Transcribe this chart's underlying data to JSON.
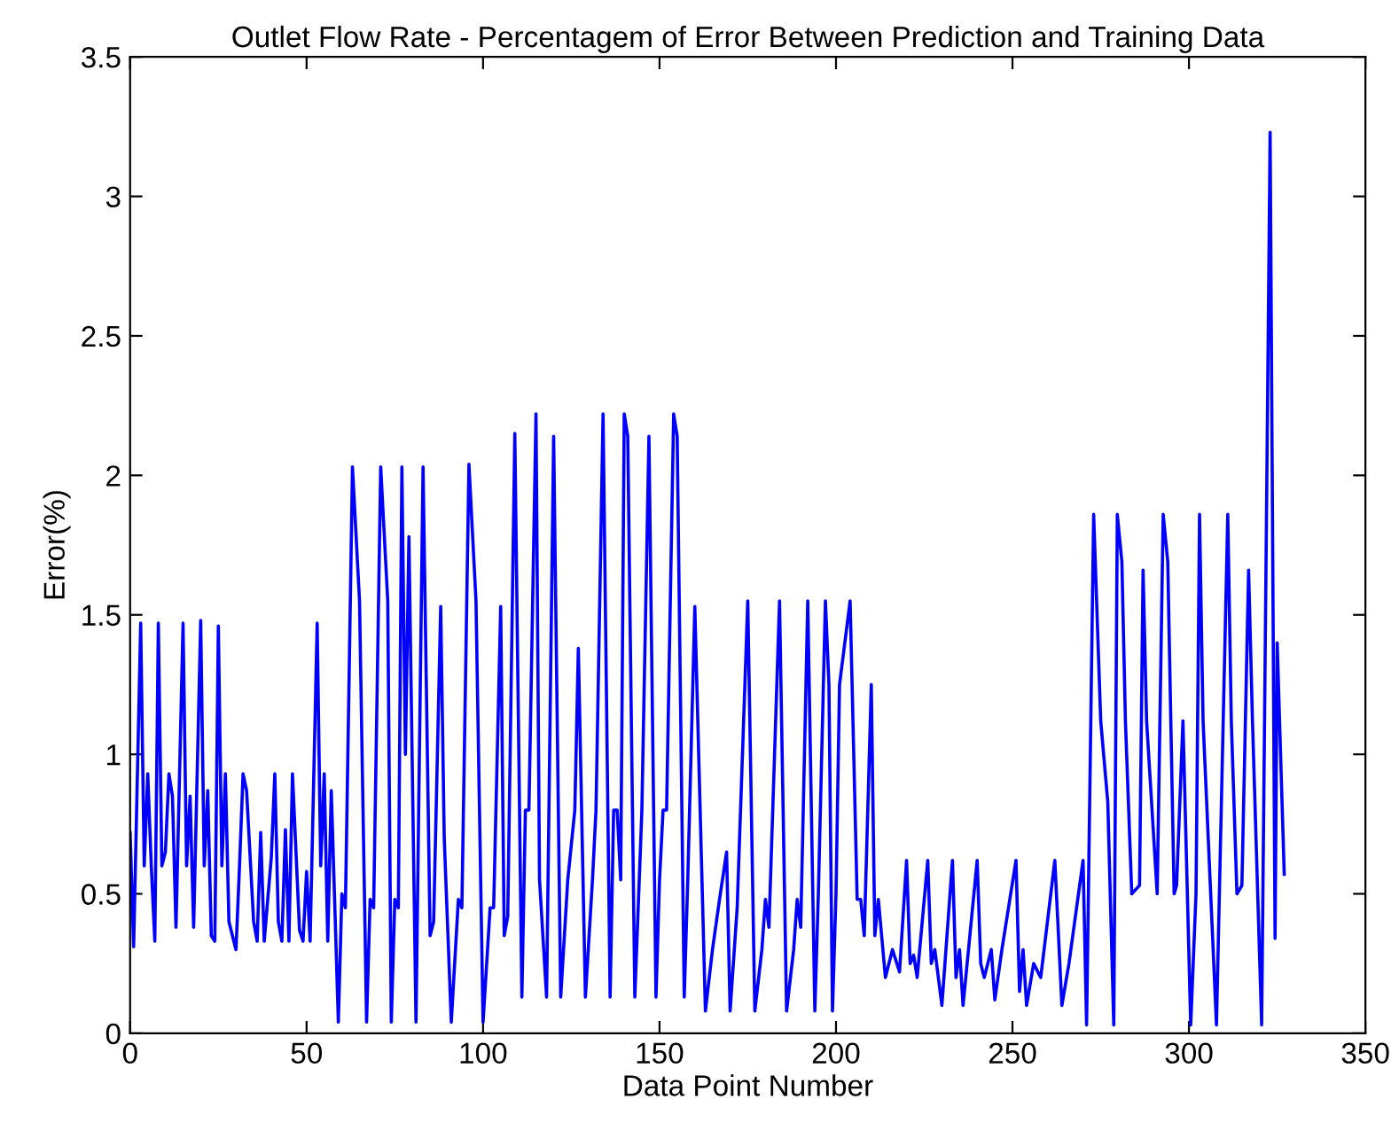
{
  "chart_data": {
    "type": "line",
    "title": "Outlet Flow Rate - Percentagem of Error Between Prediction and Training Data",
    "xlabel": "Data Point Number",
    "ylabel": "Error(%)",
    "series": [
      {
        "color": "#0000ff",
        "x": [
          0,
          1,
          3,
          4,
          5,
          6,
          7,
          8,
          9,
          10,
          11,
          12,
          13,
          15,
          16,
          17,
          18,
          20,
          21,
          22,
          23,
          24,
          25,
          26,
          27,
          28,
          30,
          31,
          32,
          33,
          35,
          36,
          37,
          38,
          40,
          41,
          42,
          43,
          44,
          45,
          46,
          48,
          49,
          50,
          51,
          53,
          54,
          55,
          56,
          57,
          59,
          60,
          61,
          63,
          65,
          67,
          68,
          69,
          71,
          73,
          74,
          75,
          76,
          77,
          78,
          79,
          81,
          83,
          85,
          86,
          88,
          89,
          91,
          93,
          94,
          96,
          98,
          100,
          102,
          103,
          105,
          106,
          107,
          109,
          111,
          112,
          113,
          115,
          116,
          118,
          120,
          122,
          124,
          126,
          127,
          129,
          131,
          132,
          134,
          136,
          137,
          138,
          139,
          140,
          141,
          143,
          145,
          147,
          149,
          150,
          151,
          152,
          154,
          155,
          157,
          158,
          160,
          163,
          165,
          167,
          169,
          170,
          172,
          175,
          177,
          179,
          180,
          181,
          184,
          186,
          188,
          189,
          190,
          192,
          194,
          195,
          197,
          198,
          199,
          200,
          201,
          204,
          206,
          207,
          208,
          210,
          211,
          212,
          214,
          215,
          216,
          218,
          220,
          221,
          222,
          223,
          226,
          227,
          228,
          230,
          233,
          234,
          235,
          236,
          240,
          241,
          242,
          244,
          245,
          247,
          251,
          252,
          253,
          254,
          256,
          258,
          262,
          264,
          266,
          270,
          271,
          273,
          275,
          277,
          278.7,
          279.7,
          281,
          282,
          283.8,
          286,
          287,
          288,
          291,
          292.7,
          294,
          295.8,
          296.5,
          298.3,
          300.5,
          302,
          303,
          304,
          307.8,
          311,
          312,
          313.6,
          315,
          316.9,
          318,
          320.6,
          323,
          324.4,
          325,
          327
        ],
        "values": [
          0.72,
          0.31,
          1.47,
          0.6,
          0.93,
          0.6,
          0.33,
          1.47,
          0.6,
          0.65,
          0.93,
          0.85,
          0.38,
          1.47,
          0.6,
          0.85,
          0.38,
          1.48,
          0.6,
          0.87,
          0.35,
          0.33,
          1.46,
          0.6,
          0.93,
          0.4,
          0.3,
          0.6,
          0.93,
          0.87,
          0.4,
          0.33,
          0.72,
          0.33,
          0.63,
          0.93,
          0.4,
          0.33,
          0.73,
          0.33,
          0.93,
          0.37,
          0.33,
          0.58,
          0.33,
          1.47,
          0.6,
          0.93,
          0.33,
          0.87,
          0.04,
          0.5,
          0.45,
          2.03,
          1.55,
          0.04,
          0.48,
          0.45,
          2.03,
          1.55,
          0.04,
          0.48,
          0.45,
          2.03,
          1.0,
          1.78,
          0.04,
          2.03,
          0.35,
          0.4,
          1.53,
          0.7,
          0.04,
          0.48,
          0.45,
          2.04,
          1.55,
          0.04,
          0.45,
          0.45,
          1.53,
          0.35,
          0.42,
          2.15,
          0.13,
          0.8,
          0.8,
          2.22,
          0.55,
          0.13,
          2.14,
          0.13,
          0.55,
          0.8,
          1.38,
          0.13,
          0.55,
          0.8,
          2.22,
          0.13,
          0.8,
          0.8,
          0.55,
          2.22,
          2.14,
          0.13,
          0.8,
          2.14,
          0.13,
          0.55,
          0.8,
          0.8,
          2.22,
          2.14,
          0.13,
          0.55,
          1.53,
          0.08,
          0.3,
          0.48,
          0.65,
          0.08,
          0.45,
          1.55,
          0.08,
          0.3,
          0.48,
          0.38,
          1.55,
          0.08,
          0.3,
          0.48,
          0.38,
          1.55,
          0.08,
          0.5,
          1.55,
          1.25,
          0.08,
          0.5,
          1.25,
          1.55,
          0.48,
          0.48,
          0.35,
          1.25,
          0.35,
          0.48,
          0.2,
          0.25,
          0.3,
          0.22,
          0.62,
          0.25,
          0.28,
          0.2,
          0.62,
          0.25,
          0.3,
          0.1,
          0.62,
          0.2,
          0.3,
          0.1,
          0.62,
          0.25,
          0.2,
          0.3,
          0.12,
          0.3,
          0.62,
          0.15,
          0.3,
          0.1,
          0.25,
          0.2,
          0.62,
          0.1,
          0.25,
          0.62,
          0.03,
          1.86,
          1.12,
          0.83,
          0.03,
          1.86,
          1.69,
          1.12,
          0.5,
          0.53,
          1.66,
          1.12,
          0.5,
          1.86,
          1.69,
          0.5,
          0.53,
          1.12,
          0.03,
          0.5,
          1.86,
          1.12,
          0.03,
          1.86,
          1.12,
          0.5,
          0.53,
          1.66,
          1.12,
          0.03,
          3.23,
          0.34,
          1.4,
          0.57
        ]
      }
    ],
    "xlim": [
      0,
      350
    ],
    "xticks": [
      0,
      50,
      100,
      150,
      200,
      250,
      300,
      350
    ],
    "ylim": [
      0,
      3.5
    ],
    "yticks": [
      0,
      0.5,
      1,
      1.5,
      2,
      2.5,
      3,
      3.5
    ],
    "grid": false,
    "legend": false
  }
}
